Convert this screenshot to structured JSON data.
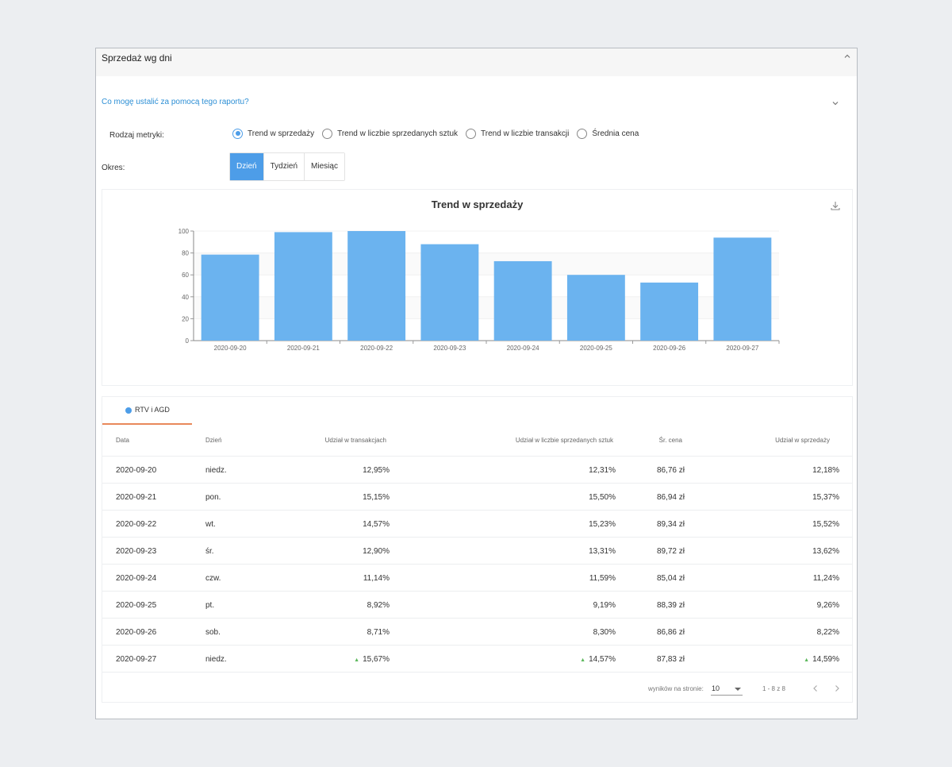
{
  "card": {
    "title": "Sprzedaż wg dni"
  },
  "help": {
    "question": "Co mogę ustalić za pomocą tego raportu?"
  },
  "metric": {
    "label": "Rodzaj metryki:",
    "options": [
      {
        "label": "Trend w sprzedaży",
        "checked": true
      },
      {
        "label": "Trend w liczbie sprzedanych sztuk",
        "checked": false
      },
      {
        "label": "Trend w liczbie transakcji",
        "checked": false
      },
      {
        "label": "Średnia cena",
        "checked": false
      }
    ]
  },
  "period": {
    "label": "Okres:",
    "options": [
      {
        "label": "Dzień",
        "active": true
      },
      {
        "label": "Tydzień",
        "active": false
      },
      {
        "label": "Miesiąc",
        "active": false
      }
    ]
  },
  "chart_data": {
    "type": "bar",
    "title": "Trend w sprzedaży",
    "categories": [
      "2020-09-20",
      "2020-09-21",
      "2020-09-22",
      "2020-09-23",
      "2020-09-24",
      "2020-09-25",
      "2020-09-26",
      "2020-09-27"
    ],
    "values": [
      78.5,
      99,
      100,
      88,
      72.5,
      60,
      53,
      94
    ],
    "ylim": [
      0,
      100
    ],
    "yticks": [
      0,
      20,
      40,
      60,
      80,
      100
    ],
    "xlabel": "",
    "ylabel": "",
    "grid": true,
    "color": "#6bb3ef"
  },
  "table": {
    "tab_label": "RTV i AGD",
    "accent_color": "#e8885a",
    "headers": {
      "date": "Data",
      "day": "Dzień",
      "transactions": "Udział w transakcjach",
      "units": "Udział w liczbie sprzedanych sztuk",
      "avg_price": "Śr. cena",
      "sales": "Udział w sprzedaży"
    },
    "rows": [
      {
        "date": "2020-09-20",
        "day": "niedz.",
        "transactions": "12,95%",
        "units": "12,31%",
        "avg_price": "86,76 zł",
        "sales": "12,18%",
        "trend": false
      },
      {
        "date": "2020-09-21",
        "day": "pon.",
        "transactions": "15,15%",
        "units": "15,50%",
        "avg_price": "86,94 zł",
        "sales": "15,37%",
        "trend": false
      },
      {
        "date": "2020-09-22",
        "day": "wt.",
        "transactions": "14,57%",
        "units": "15,23%",
        "avg_price": "89,34 zł",
        "sales": "15,52%",
        "trend": false
      },
      {
        "date": "2020-09-23",
        "day": "śr.",
        "transactions": "12,90%",
        "units": "13,31%",
        "avg_price": "89,72 zł",
        "sales": "13,62%",
        "trend": false
      },
      {
        "date": "2020-09-24",
        "day": "czw.",
        "transactions": "11,14%",
        "units": "11,59%",
        "avg_price": "85,04 zł",
        "sales": "11,24%",
        "trend": false
      },
      {
        "date": "2020-09-25",
        "day": "pt.",
        "transactions": "8,92%",
        "units": "9,19%",
        "avg_price": "88,39 zł",
        "sales": "9,26%",
        "trend": false
      },
      {
        "date": "2020-09-26",
        "day": "sob.",
        "transactions": "8,71%",
        "units": "8,30%",
        "avg_price": "86,86 zł",
        "sales": "8,22%",
        "trend": false
      },
      {
        "date": "2020-09-27",
        "day": "niedz.",
        "transactions": "15,67%",
        "units": "14,57%",
        "avg_price": "87,83 zł",
        "sales": "14,59%",
        "trend": true
      }
    ],
    "trend_glyph": "▲"
  },
  "pagination": {
    "per_page_label": "wyników na stronie:",
    "per_page_value": "10",
    "range": "1 - 8 z 8"
  },
  "icons": {
    "collapse": "chevron-up-icon",
    "expand": "chevron-down-icon",
    "download": "download-icon",
    "prev": "chevron-left-icon",
    "next": "chevron-right-icon"
  }
}
